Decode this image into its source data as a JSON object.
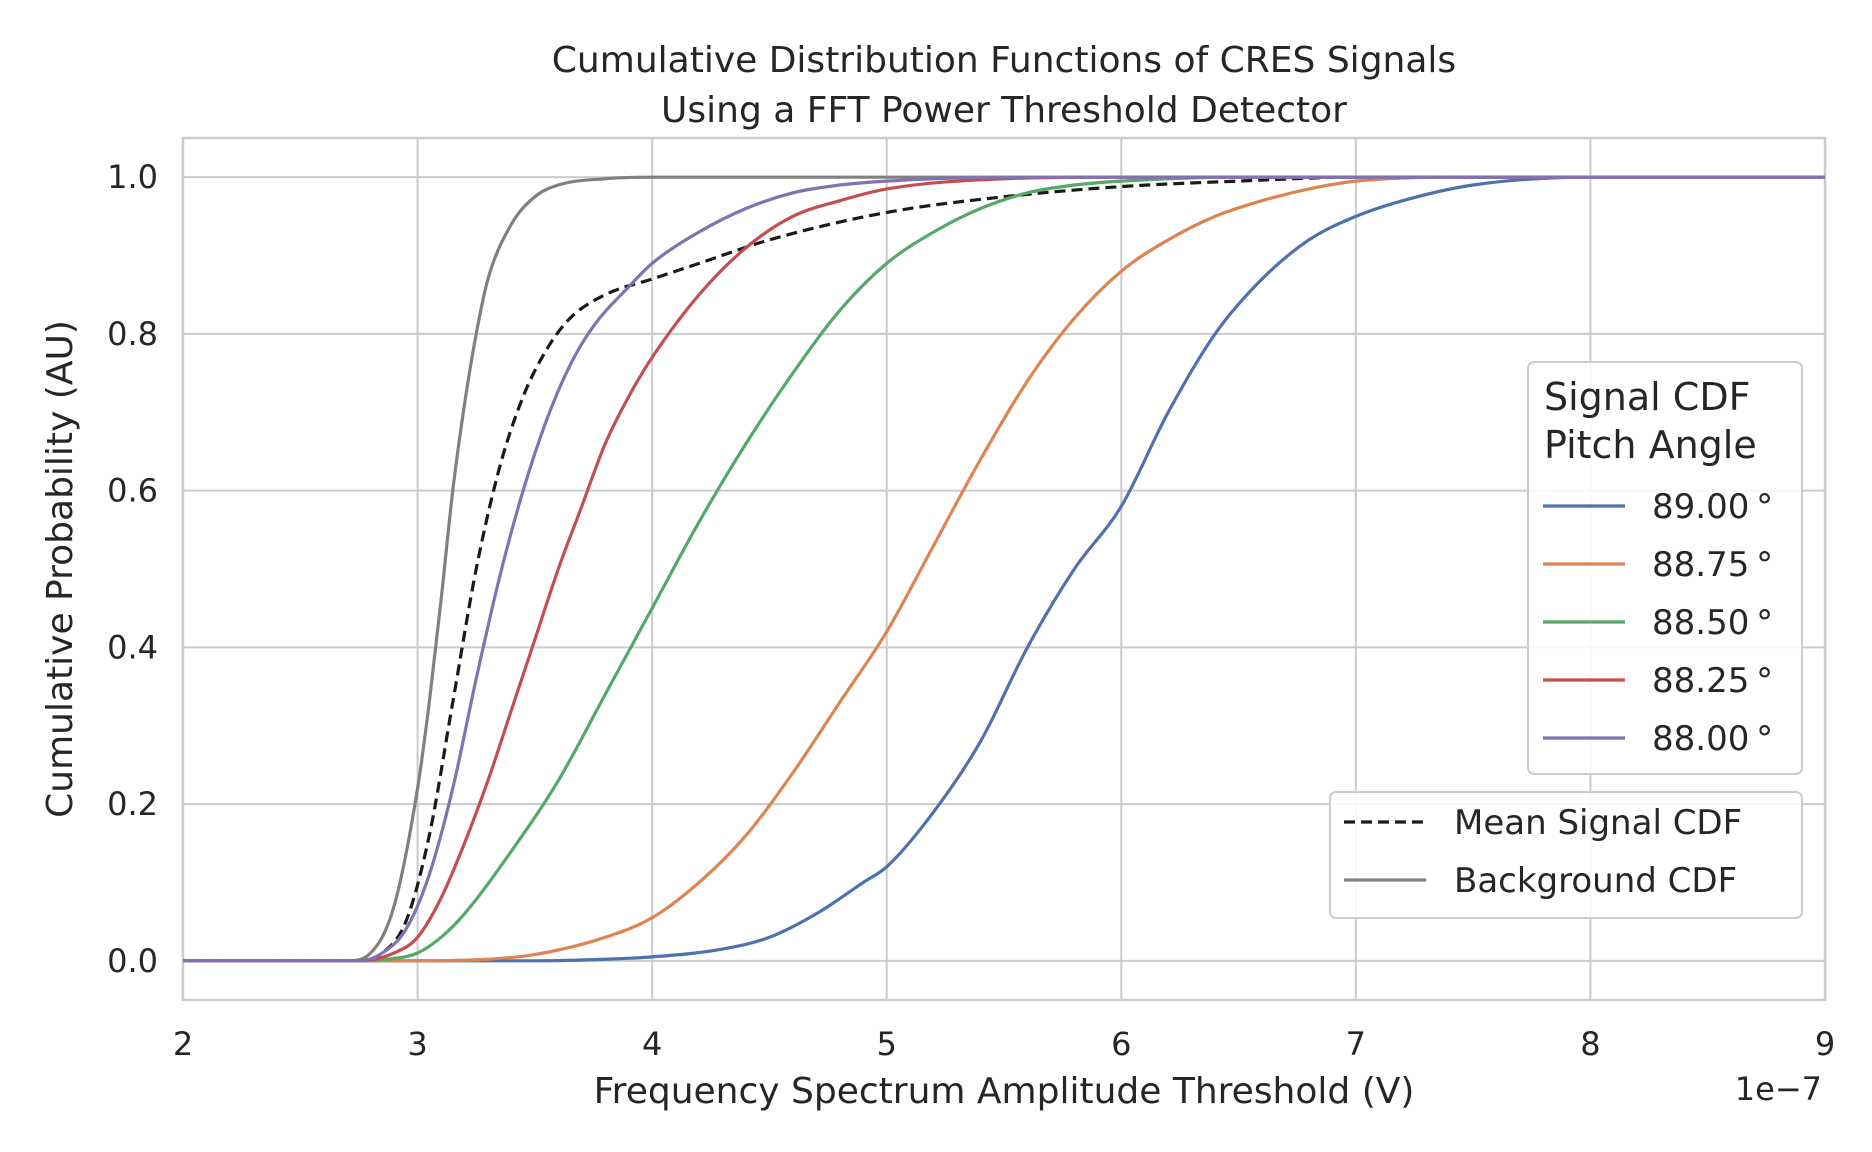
{
  "chart_data": {
    "type": "line",
    "title_lines": [
      "Cumulative Distribution Functions of CRES Signals",
      "Using a FFT Power Threshold Detector"
    ],
    "xlabel": "Frequency Spectrum Amplitude Threshold (V)",
    "ylabel": "Cumulative Probability (AU)",
    "x_offset_label": "1e−7",
    "xlim": [
      2,
      9
    ],
    "ylim": [
      -0.05,
      1.05
    ],
    "x_scale_note": "x values in units of 1e-7 V",
    "xticks": [
      2,
      3,
      4,
      5,
      6,
      7,
      8,
      9
    ],
    "yticks": [
      0.0,
      0.2,
      0.4,
      0.6,
      0.8,
      1.0
    ],
    "xtick_labels": [
      "2",
      "3",
      "4",
      "5",
      "6",
      "7",
      "8",
      "9"
    ],
    "ytick_labels": [
      "0.0",
      "0.2",
      "0.4",
      "0.6",
      "0.8",
      "1.0"
    ],
    "grid": true,
    "legend_signal": {
      "title_lines": [
        "Signal CDF",
        "Pitch Angle"
      ],
      "placement": "right"
    },
    "legend_summary": {
      "placement": "lower-right"
    },
    "series": [
      {
        "name": "89.00 °",
        "color": "#4c72b0",
        "dash": "solid",
        "points": [
          [
            2.0,
            0.0
          ],
          [
            2.8,
            0.0
          ],
          [
            3.5,
            0.0
          ],
          [
            3.8,
            0.002
          ],
          [
            4.0,
            0.005
          ],
          [
            4.3,
            0.015
          ],
          [
            4.5,
            0.03
          ],
          [
            4.7,
            0.06
          ],
          [
            4.9,
            0.1
          ],
          [
            5.0,
            0.12
          ],
          [
            5.2,
            0.19
          ],
          [
            5.4,
            0.28
          ],
          [
            5.6,
            0.4
          ],
          [
            5.8,
            0.5
          ],
          [
            6.0,
            0.58
          ],
          [
            6.2,
            0.7
          ],
          [
            6.4,
            0.8
          ],
          [
            6.6,
            0.87
          ],
          [
            6.8,
            0.92
          ],
          [
            7.0,
            0.95
          ],
          [
            7.2,
            0.97
          ],
          [
            7.5,
            0.99
          ],
          [
            8.0,
            1.0
          ],
          [
            9.0,
            1.0
          ]
        ]
      },
      {
        "name": "88.75 °",
        "color": "#dd8452",
        "dash": "solid",
        "points": [
          [
            2.0,
            0.0
          ],
          [
            3.0,
            0.0
          ],
          [
            3.3,
            0.002
          ],
          [
            3.5,
            0.008
          ],
          [
            3.8,
            0.03
          ],
          [
            4.0,
            0.055
          ],
          [
            4.2,
            0.1
          ],
          [
            4.4,
            0.16
          ],
          [
            4.6,
            0.24
          ],
          [
            4.8,
            0.33
          ],
          [
            5.0,
            0.42
          ],
          [
            5.2,
            0.53
          ],
          [
            5.4,
            0.64
          ],
          [
            5.6,
            0.74
          ],
          [
            5.8,
            0.82
          ],
          [
            6.0,
            0.88
          ],
          [
            6.2,
            0.92
          ],
          [
            6.4,
            0.95
          ],
          [
            6.6,
            0.97
          ],
          [
            6.8,
            0.985
          ],
          [
            7.0,
            0.995
          ],
          [
            7.5,
            1.0
          ],
          [
            9.0,
            1.0
          ]
        ]
      },
      {
        "name": "88.50 °",
        "color": "#55a868",
        "dash": "solid",
        "points": [
          [
            2.0,
            0.0
          ],
          [
            2.7,
            0.0
          ],
          [
            2.9,
            0.003
          ],
          [
            3.0,
            0.01
          ],
          [
            3.1,
            0.03
          ],
          [
            3.2,
            0.06
          ],
          [
            3.4,
            0.14
          ],
          [
            3.6,
            0.23
          ],
          [
            3.8,
            0.34
          ],
          [
            4.0,
            0.45
          ],
          [
            4.2,
            0.56
          ],
          [
            4.4,
            0.66
          ],
          [
            4.6,
            0.75
          ],
          [
            4.8,
            0.83
          ],
          [
            5.0,
            0.89
          ],
          [
            5.2,
            0.93
          ],
          [
            5.4,
            0.96
          ],
          [
            5.6,
            0.98
          ],
          [
            5.8,
            0.99
          ],
          [
            6.0,
            0.995
          ],
          [
            6.5,
            1.0
          ],
          [
            9.0,
            1.0
          ]
        ]
      },
      {
        "name": "88.25 °",
        "color": "#c44e52",
        "dash": "solid",
        "points": [
          [
            2.0,
            0.0
          ],
          [
            2.75,
            0.0
          ],
          [
            2.9,
            0.01
          ],
          [
            3.0,
            0.03
          ],
          [
            3.1,
            0.08
          ],
          [
            3.2,
            0.15
          ],
          [
            3.3,
            0.23
          ],
          [
            3.4,
            0.32
          ],
          [
            3.5,
            0.41
          ],
          [
            3.6,
            0.5
          ],
          [
            3.7,
            0.58
          ],
          [
            3.8,
            0.66
          ],
          [
            3.9,
            0.72
          ],
          [
            4.0,
            0.77
          ],
          [
            4.2,
            0.85
          ],
          [
            4.4,
            0.91
          ],
          [
            4.6,
            0.95
          ],
          [
            4.8,
            0.97
          ],
          [
            5.0,
            0.985
          ],
          [
            5.5,
            0.998
          ],
          [
            6.0,
            1.0
          ],
          [
            9.0,
            1.0
          ]
        ]
      },
      {
        "name": "88.00 °",
        "color": "#8172b3",
        "dash": "solid",
        "points": [
          [
            2.0,
            0.0
          ],
          [
            2.75,
            0.0
          ],
          [
            2.85,
            0.01
          ],
          [
            2.95,
            0.04
          ],
          [
            3.05,
            0.11
          ],
          [
            3.15,
            0.22
          ],
          [
            3.25,
            0.36
          ],
          [
            3.35,
            0.49
          ],
          [
            3.45,
            0.6
          ],
          [
            3.55,
            0.69
          ],
          [
            3.65,
            0.76
          ],
          [
            3.75,
            0.81
          ],
          [
            3.9,
            0.86
          ],
          [
            4.0,
            0.89
          ],
          [
            4.2,
            0.93
          ],
          [
            4.4,
            0.96
          ],
          [
            4.6,
            0.98
          ],
          [
            4.8,
            0.99
          ],
          [
            5.0,
            0.995
          ],
          [
            5.5,
            1.0
          ],
          [
            9.0,
            1.0
          ]
        ]
      },
      {
        "name": "Mean Signal CDF",
        "color": "#1a1a1a",
        "dash": "dashed",
        "points": [
          [
            2.0,
            0.0
          ],
          [
            2.75,
            0.0
          ],
          [
            2.85,
            0.01
          ],
          [
            2.95,
            0.05
          ],
          [
            3.05,
            0.16
          ],
          [
            3.15,
            0.33
          ],
          [
            3.25,
            0.5
          ],
          [
            3.35,
            0.63
          ],
          [
            3.45,
            0.72
          ],
          [
            3.55,
            0.78
          ],
          [
            3.65,
            0.82
          ],
          [
            3.8,
            0.85
          ],
          [
            4.0,
            0.87
          ],
          [
            4.2,
            0.89
          ],
          [
            4.5,
            0.92
          ],
          [
            5.0,
            0.955
          ],
          [
            5.5,
            0.975
          ],
          [
            6.0,
            0.988
          ],
          [
            6.5,
            0.995
          ],
          [
            7.0,
            1.0
          ],
          [
            9.0,
            1.0
          ]
        ]
      },
      {
        "name": "Background CDF",
        "color": "#808080",
        "dash": "solid",
        "points": [
          [
            2.0,
            0.0
          ],
          [
            2.7,
            0.0
          ],
          [
            2.8,
            0.01
          ],
          [
            2.9,
            0.07
          ],
          [
            3.0,
            0.22
          ],
          [
            3.05,
            0.33
          ],
          [
            3.1,
            0.46
          ],
          [
            3.15,
            0.6
          ],
          [
            3.2,
            0.71
          ],
          [
            3.25,
            0.8
          ],
          [
            3.3,
            0.87
          ],
          [
            3.4,
            0.94
          ],
          [
            3.5,
            0.975
          ],
          [
            3.6,
            0.99
          ],
          [
            3.8,
            0.998
          ],
          [
            4.0,
            1.0
          ],
          [
            9.0,
            1.0
          ]
        ]
      }
    ]
  }
}
